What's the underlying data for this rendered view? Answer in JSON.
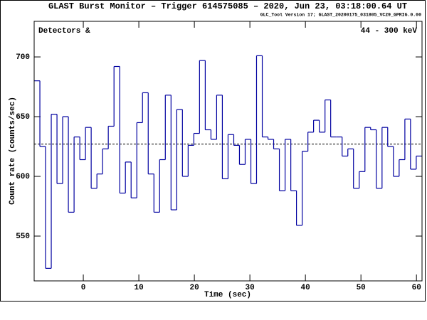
{
  "chart_data": {
    "type": "histogram",
    "title": "GLAST Burst Monitor  –  Trigger 614575085  –  2020, Jun 23, 03:18:00.64 UT",
    "subtitle": "GLC_Tool Version 17; GLAST_20200175_031805_VC29_GPRIG.0.00",
    "annotations": [
      "Detectors  &",
      "44 - 300 keV"
    ],
    "x_label": "Time (sec)",
    "y_label": "Count rate (counts/sec)",
    "color": "#0000a0",
    "reference_line": 627,
    "bins": [
      -8.85,
      -7.82,
      -6.8,
      -5.77,
      -4.74,
      -3.72,
      -2.69,
      -1.66,
      -0.63,
      0.39,
      1.42,
      2.45,
      3.47,
      4.5,
      5.53,
      6.56,
      7.58,
      8.61,
      9.64,
      10.66,
      11.69,
      12.72,
      13.74,
      14.77,
      15.8,
      16.83,
      17.85,
      18.88,
      19.91,
      20.93,
      21.96,
      22.99,
      24.01,
      25.04,
      26.07,
      27.1,
      28.12,
      29.15,
      30.18,
      31.2,
      32.23,
      33.26,
      34.28,
      35.31,
      36.34,
      37.37,
      38.39,
      39.42,
      40.45,
      41.47,
      42.5,
      43.53,
      44.55,
      45.58,
      46.61,
      47.64,
      48.66,
      49.69,
      50.72,
      51.74,
      52.77,
      53.8,
      54.82,
      55.85,
      56.88,
      57.91,
      58.93,
      59.96,
      60.99
    ],
    "counts": [
      680,
      625,
      523,
      652,
      594,
      650,
      570,
      633,
      614,
      641,
      590,
      602,
      623,
      642,
      692,
      586,
      612,
      582,
      645,
      670,
      602,
      570,
      614,
      668,
      572,
      656,
      600,
      626,
      636,
      697,
      639,
      631,
      668,
      598,
      635,
      626,
      610,
      631,
      594,
      701,
      633,
      631,
      623,
      588,
      631,
      588,
      559,
      621,
      637,
      647,
      637,
      664,
      633,
      633,
      617,
      623,
      590,
      604,
      641,
      639,
      590,
      641,
      625,
      600,
      614,
      648,
      606,
      617
    ],
    "xlim": [
      -8.85,
      61.0
    ],
    "ylim": [
      512.5,
      729.8
    ],
    "xticks": [
      0,
      10,
      20,
      30,
      40,
      50,
      60
    ],
    "yticks": [
      550,
      600,
      650,
      700
    ]
  }
}
